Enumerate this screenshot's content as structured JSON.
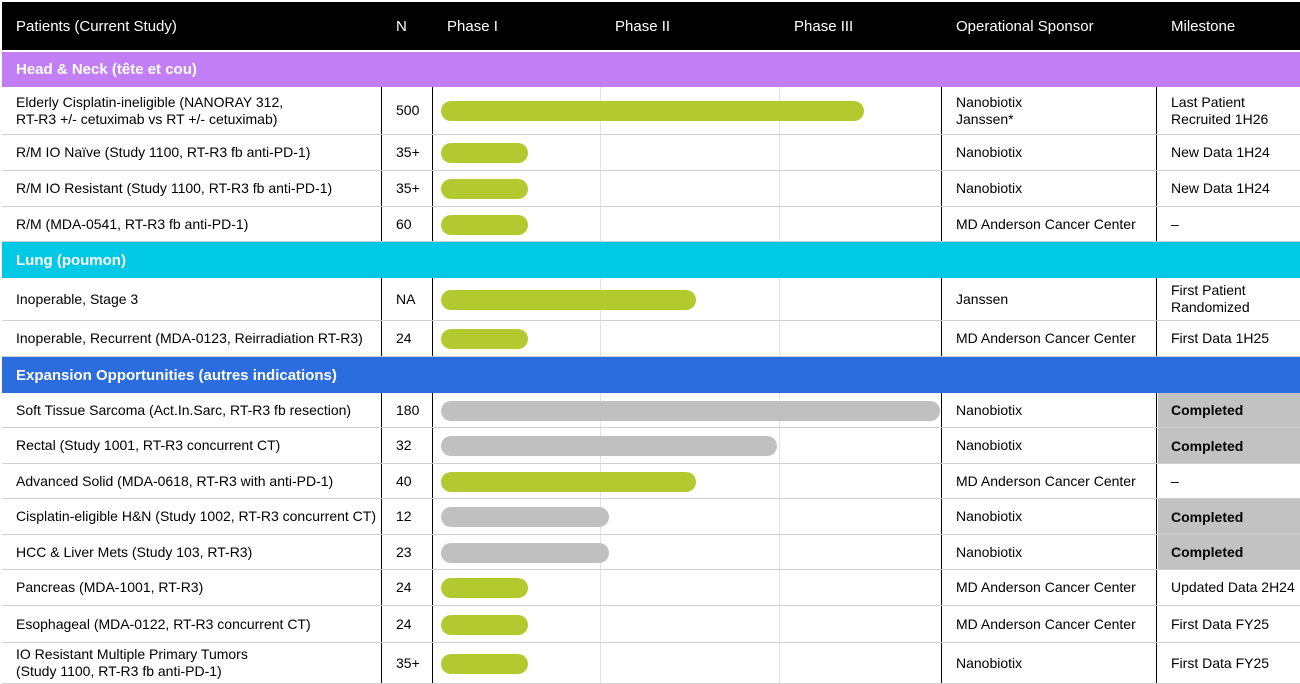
{
  "header": {
    "patients": "Patients (Current Study)",
    "n": "N",
    "phase1": "Phase I",
    "phase2": "Phase II",
    "phase3": "Phase III",
    "sponsor": "Operational Sponsor",
    "milestone": "Milestone"
  },
  "colors": {
    "header_bg": "#000000",
    "head_neck": "#c27ef4",
    "lung": "#00c9e6",
    "expansion": "#2b6cdf",
    "active_bar": "#b2ca2f",
    "completed_bar": "#c0c0c0"
  },
  "sections": {
    "head_neck": "Head & Neck (tête et cou)",
    "lung": "Lung (poumon)",
    "expansion": "Expansion Opportunities (autres indications)"
  },
  "rows": [
    {
      "name": "Elderly Cisplatin-ineligible (NANORAY 312,\nRT-R3 +/- cetuximab vs RT +/- cetuximab)",
      "n": "500",
      "progress": 0.78,
      "status": "active",
      "sponsor": "Nanobiotix\nJanssen*",
      "milestone": "Last Patient\nRecruited 1H26"
    },
    {
      "name": "R/M IO Naïve (Study 1100, RT-R3 fb anti-PD-1)",
      "n": "35+",
      "progress": 0.16,
      "status": "active",
      "sponsor": "Nanobiotix",
      "milestone": "New Data 1H24"
    },
    {
      "name": "R/M IO Resistant (Study 1100, RT-R3 fb anti-PD-1)",
      "n": "35+",
      "progress": 0.16,
      "status": "active",
      "sponsor": "Nanobiotix",
      "milestone": "New Data 1H24"
    },
    {
      "name": "R/M (MDA-0541, RT-R3 fb anti-PD-1)",
      "n": "60",
      "progress": 0.16,
      "status": "active",
      "sponsor": "MD Anderson Cancer Center",
      "milestone": "–"
    },
    {
      "name": "Inoperable, Stage 3",
      "n": "NA",
      "progress": 0.47,
      "status": "active",
      "sponsor": "Janssen",
      "milestone": "First Patient\nRandomized"
    },
    {
      "name": "Inoperable, Recurrent (MDA-0123, Reirradiation RT-R3)",
      "n": "24",
      "progress": 0.16,
      "status": "active",
      "sponsor": "MD Anderson Cancer Center",
      "milestone": "First Data 1H25"
    },
    {
      "name": "Soft Tissue Sarcoma (Act.In.Sarc, RT-R3 fb resection)",
      "n": "180",
      "progress": 0.92,
      "status": "completed",
      "sponsor": "Nanobiotix",
      "milestone": "Completed"
    },
    {
      "name": "Rectal (Study 1001, RT-R3 concurrent CT)",
      "n": "32",
      "progress": 0.62,
      "status": "completed",
      "sponsor": "Nanobiotix",
      "milestone": "Completed"
    },
    {
      "name": "Advanced Solid (MDA-0618, RT-R3 with anti-PD-1)",
      "n": "40",
      "progress": 0.47,
      "status": "active",
      "sponsor": "MD Anderson Cancer Center",
      "milestone": "–"
    },
    {
      "name": "Cisplatin-eligible H&N (Study 1002, RT-R3 concurrent CT)",
      "n": "12",
      "progress": 0.31,
      "status": "completed",
      "sponsor": "Nanobiotix",
      "milestone": "Completed"
    },
    {
      "name": "HCC & Liver Mets (Study 103, RT-R3)",
      "n": "23",
      "progress": 0.31,
      "status": "completed",
      "sponsor": "Nanobiotix",
      "milestone": "Completed"
    },
    {
      "name": "Pancreas (MDA-1001, RT-R3)",
      "n": "24",
      "progress": 0.16,
      "status": "active",
      "sponsor": "MD Anderson Cancer Center",
      "milestone": "Updated Data 2H24"
    },
    {
      "name": "Esophageal (MDA-0122, RT-R3 concurrent CT)",
      "n": "24",
      "progress": 0.16,
      "status": "active",
      "sponsor": "MD Anderson Cancer Center",
      "milestone": "First Data FY25"
    },
    {
      "name": "IO Resistant Multiple Primary Tumors\n(Study 1100, RT-R3 fb anti-PD-1)",
      "n": "35+",
      "progress": 0.16,
      "status": "active",
      "sponsor": "Nanobiotix",
      "milestone": "First Data FY25"
    }
  ]
}
